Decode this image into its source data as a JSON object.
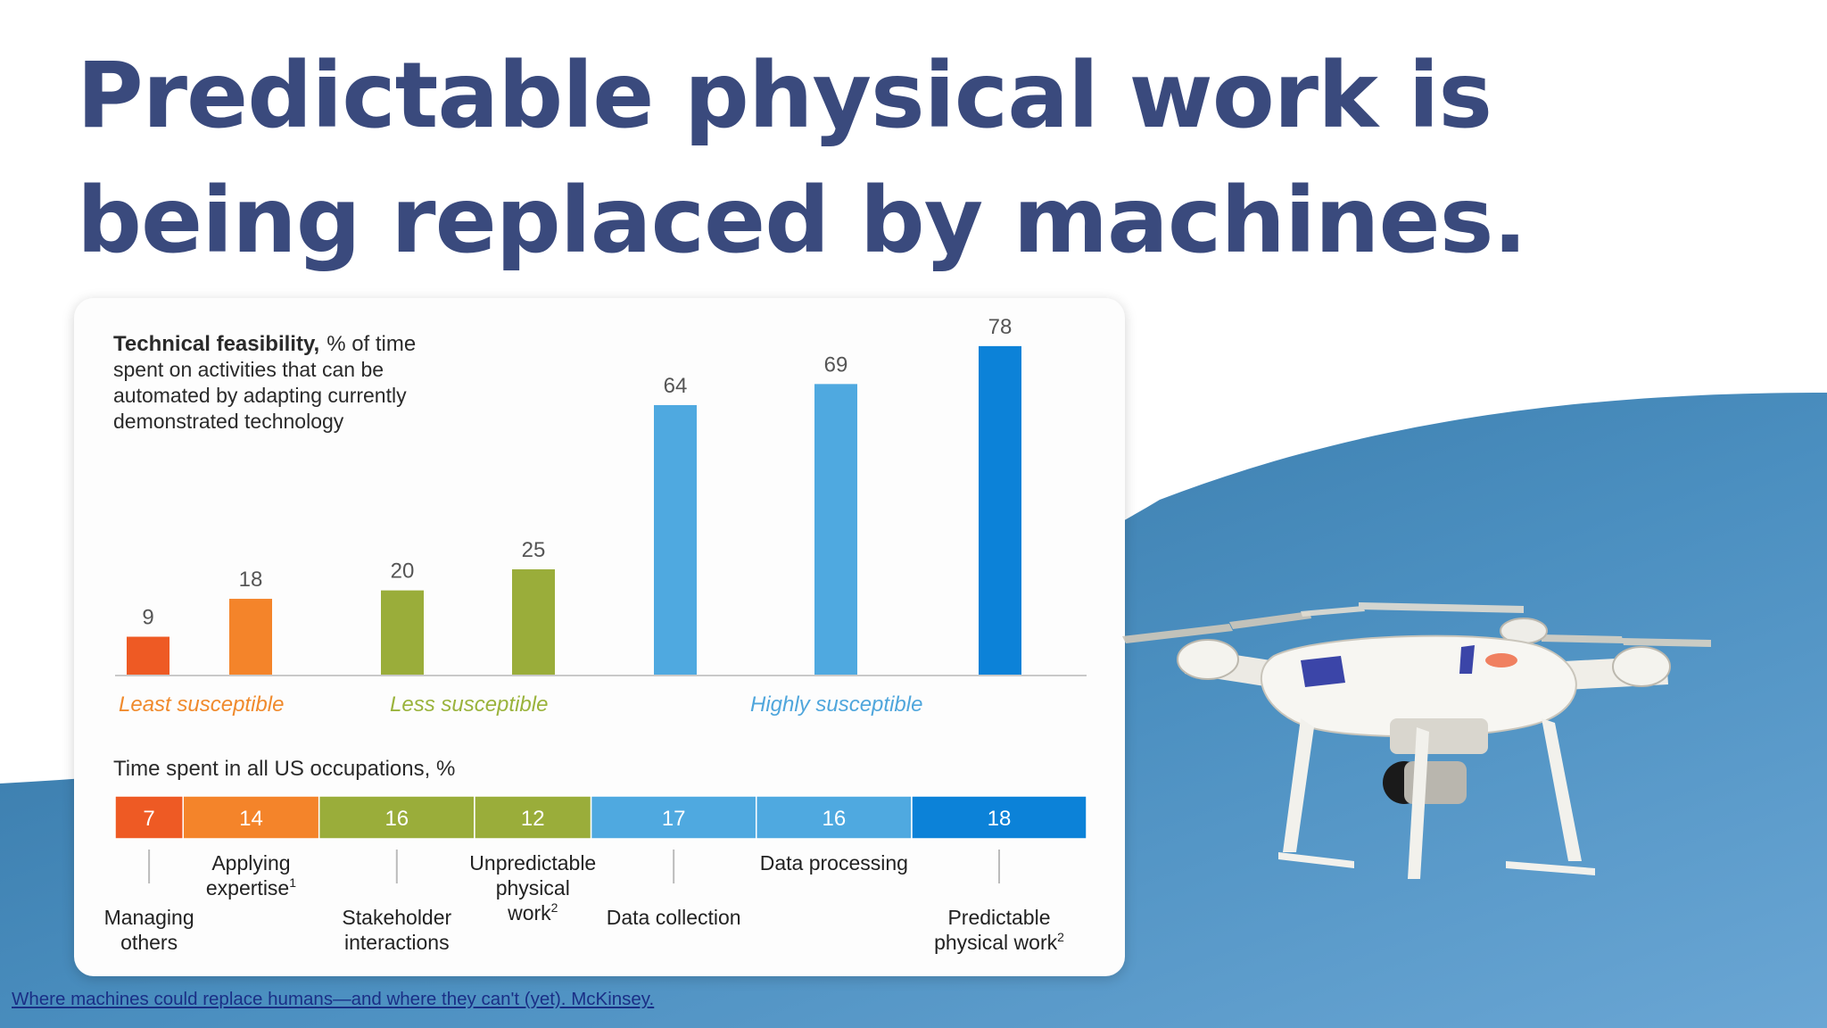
{
  "slide": {
    "title": "Predictable physical work is being replaced by machines.",
    "source_link": "Where machines could replace humans—and where they can't (yet). McKinsey.",
    "colors": {
      "title": "#3a4a7d",
      "sky_light": "#6aa6d4",
      "sky_dark": "#2f6f9e",
      "link": "#1a2f86"
    },
    "image": "drone"
  },
  "chart_data": [
    {
      "type": "bar",
      "title": "Technical feasibility,",
      "subtitle_lines": [
        "% of time",
        "spent on activities that can be",
        "automated by adapting currently",
        "demonstrated technology"
      ],
      "categories": [
        "Managing others",
        "Applying expertise",
        "Stakeholder interactions",
        "Unpredictable physical work",
        "Data collection",
        "Data processing",
        "Predictable physical work"
      ],
      "values": [
        9,
        18,
        20,
        25,
        64,
        69,
        78
      ],
      "bar_colors": [
        "#ee5a24",
        "#f4842a",
        "#9aad3a",
        "#9aad3a",
        "#4fa9e0",
        "#4fa9e0",
        "#0c82d8"
      ],
      "ylim": [
        0,
        80
      ],
      "grid": false,
      "group_labels": [
        {
          "label": "Least susceptible",
          "color": "#f08a2c"
        },
        {
          "label": "Less susceptible",
          "color": "#9ab33c"
        },
        {
          "label": "Highly susceptible",
          "color": "#4fa6dc"
        }
      ]
    },
    {
      "type": "bar",
      "orientation": "stacked-horizontal",
      "title": "Time spent in all US occupations, %",
      "categories": [
        "Managing others",
        "Applying expertise",
        "Stakeholder interactions",
        "Unpredictable physical work",
        "Data collection",
        "Data processing",
        "Predictable physical work"
      ],
      "values": [
        7,
        14,
        16,
        12,
        17,
        16,
        18
      ],
      "colors": [
        "#ee5a24",
        "#f4842a",
        "#9aad3a",
        "#9aad3a",
        "#4fa9e0",
        "#4fa9e0",
        "#0c82d8"
      ],
      "labels": [
        {
          "lines": [
            "Managing",
            "others"
          ],
          "sup": ""
        },
        {
          "lines": [
            "Applying",
            "expertise"
          ],
          "sup": "1"
        },
        {
          "lines": [
            "Stakeholder",
            "interactions"
          ],
          "sup": ""
        },
        {
          "lines": [
            "Unpredictable",
            "physical",
            "work"
          ],
          "sup": "2"
        },
        {
          "lines": [
            "Data collection"
          ],
          "sup": ""
        },
        {
          "lines": [
            "Data processing"
          ],
          "sup": ""
        },
        {
          "lines": [
            "Predictable",
            "physical work"
          ],
          "sup": "2"
        }
      ]
    }
  ]
}
